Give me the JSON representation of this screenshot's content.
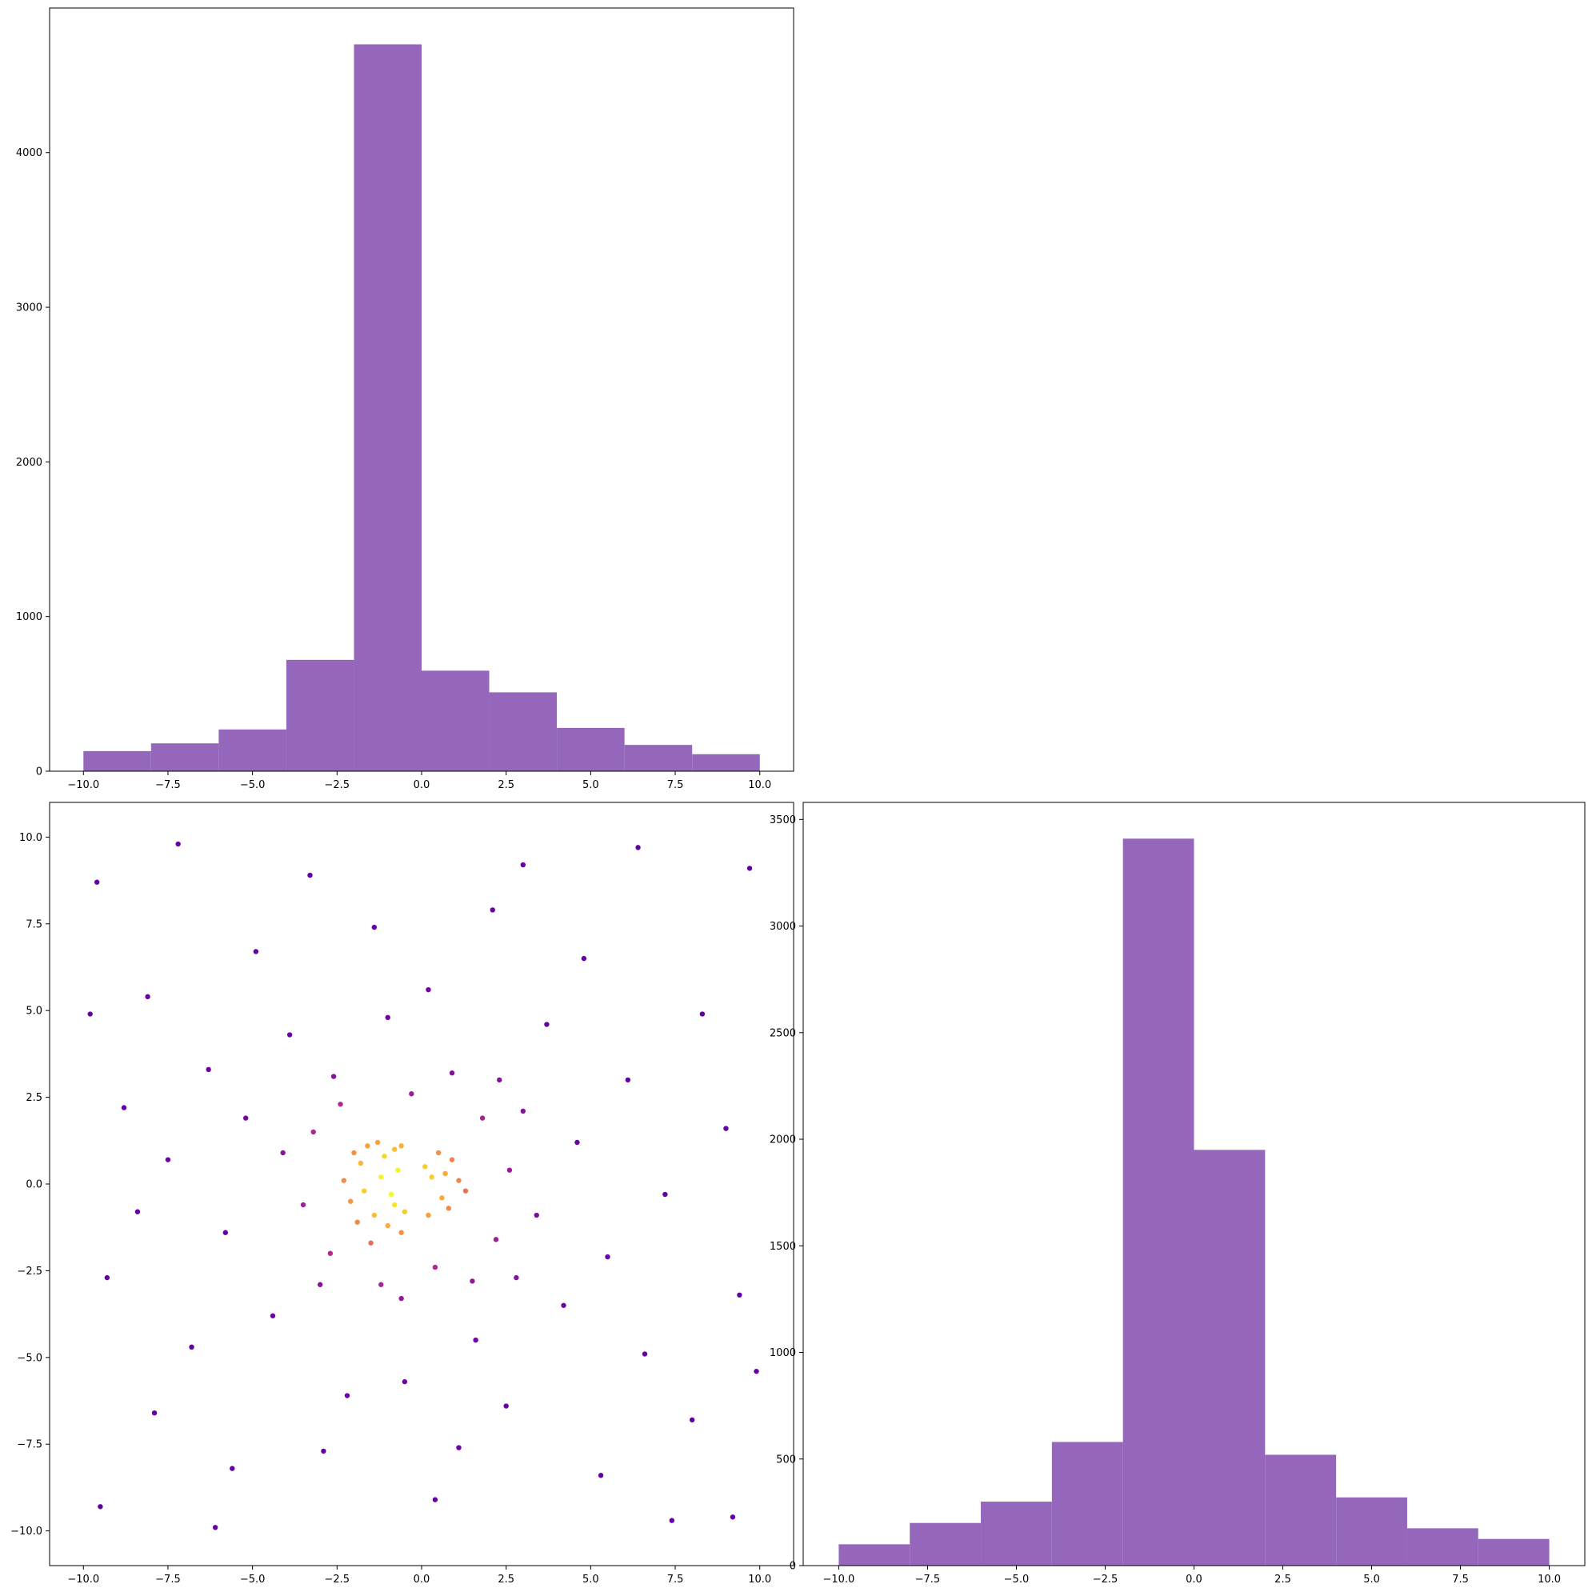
{
  "colors": {
    "bar_fill": "#9467bd",
    "colormap": "plasma",
    "colormap_stops": [
      "#0d0887",
      "#6a00a8",
      "#b12a90",
      "#e16462",
      "#fca636",
      "#f0f921"
    ]
  },
  "chart_data": [
    {
      "id": "hist_x",
      "type": "bar",
      "position": "top-left",
      "title": "",
      "xlabel": "",
      "ylabel": "",
      "bin_edges": [
        -10,
        -8,
        -6,
        -4,
        -2,
        0,
        2,
        4,
        6,
        8,
        10
      ],
      "values": [
        130,
        180,
        270,
        720,
        4700,
        650,
        510,
        280,
        170,
        110
      ],
      "xlim": [
        -11,
        11
      ],
      "ylim": [
        0,
        4935
      ],
      "xticks": [
        -10,
        -7.5,
        -5,
        -2.5,
        0,
        2.5,
        5,
        7.5,
        10
      ],
      "xtick_labels": [
        "−10.0",
        "−7.5",
        "−5.0",
        "−2.5",
        "0.0",
        "2.5",
        "5.0",
        "7.5",
        "10.0"
      ],
      "yticks": [
        0,
        1000,
        2000,
        3000,
        4000
      ],
      "ytick_labels": [
        "0",
        "1000",
        "2000",
        "3000",
        "4000"
      ],
      "grid": false
    },
    {
      "id": "scatter_xy",
      "type": "scatter",
      "position": "bottom-left",
      "title": "",
      "xlabel": "",
      "ylabel": "",
      "color_by": "point density (plasma colormap)",
      "xlim": [
        -11,
        11
      ],
      "ylim": [
        -11,
        11
      ],
      "xticks": [
        -10,
        -7.5,
        -5,
        -2.5,
        0,
        2.5,
        5,
        7.5,
        10
      ],
      "xtick_labels": [
        "−10.0",
        "−7.5",
        "−5.0",
        "−2.5",
        "0.0",
        "2.5",
        "5.0",
        "7.5",
        "10.0"
      ],
      "yticks": [
        -10,
        -7.5,
        -5,
        -2.5,
        0,
        2.5,
        5,
        7.5,
        10
      ],
      "ytick_labels": [
        "−10.0",
        "−7.5",
        "−5.0",
        "−2.5",
        "0.0",
        "2.5",
        "5.0",
        "7.5",
        "10.0"
      ],
      "grid": false,
      "points": [
        [
          -1.8,
          0.6
        ],
        [
          -1.4,
          -0.9
        ],
        [
          -0.8,
          1.0
        ],
        [
          -1.2,
          0.2
        ],
        [
          -2.1,
          -0.5
        ],
        [
          -0.6,
          -1.4
        ],
        [
          -1.6,
          1.1
        ],
        [
          -0.9,
          -0.3
        ],
        [
          -1.1,
          0.8
        ],
        [
          -2.3,
          0.1
        ],
        [
          -0.7,
          0.4
        ],
        [
          -1.5,
          -1.7
        ],
        [
          -0.5,
          -0.8
        ],
        [
          -1.9,
          -1.1
        ],
        [
          -1.3,
          1.2
        ],
        [
          -0.6,
          1.1
        ],
        [
          -2.0,
          0.9
        ],
        [
          -1.0,
          -1.2
        ],
        [
          -1.7,
          -0.2
        ],
        [
          -0.8,
          -0.6
        ],
        [
          0.3,
          0.2
        ],
        [
          0.6,
          -0.4
        ],
        [
          0.9,
          0.7
        ],
        [
          0.2,
          -0.9
        ],
        [
          1.1,
          0.1
        ],
        [
          0.5,
          0.9
        ],
        [
          0.8,
          -0.7
        ],
        [
          1.3,
          -0.2
        ],
        [
          0.1,
          0.5
        ],
        [
          0.7,
          0.3
        ],
        [
          -3.2,
          1.5
        ],
        [
          -2.7,
          -2.0
        ],
        [
          1.8,
          1.9
        ],
        [
          2.2,
          -1.6
        ],
        [
          -0.3,
          2.6
        ],
        [
          0.4,
          -2.4
        ],
        [
          -3.5,
          -0.6
        ],
        [
          2.6,
          0.4
        ],
        [
          -2.4,
          2.3
        ],
        [
          1.5,
          -2.8
        ],
        [
          -1.2,
          -2.9
        ],
        [
          3.0,
          2.1
        ],
        [
          -4.1,
          0.9
        ],
        [
          3.4,
          -0.9
        ],
        [
          0.9,
          3.2
        ],
        [
          -0.6,
          -3.3
        ],
        [
          -3.0,
          -2.9
        ],
        [
          2.8,
          -2.7
        ],
        [
          -2.6,
          3.1
        ],
        [
          2.3,
          3.0
        ],
        [
          -5.2,
          1.9
        ],
        [
          4.6,
          1.2
        ],
        [
          -1.0,
          4.8
        ],
        [
          1.6,
          -4.5
        ],
        [
          -4.4,
          -3.8
        ],
        [
          4.2,
          -3.5
        ],
        [
          -3.9,
          4.3
        ],
        [
          3.7,
          4.6
        ],
        [
          -5.8,
          -1.4
        ],
        [
          5.5,
          -2.1
        ],
        [
          0.2,
          5.6
        ],
        [
          -0.5,
          -5.7
        ],
        [
          -6.3,
          3.3
        ],
        [
          6.1,
          3.0
        ],
        [
          -2.2,
          -6.1
        ],
        [
          2.5,
          -6.4
        ],
        [
          -6.8,
          -4.7
        ],
        [
          6.6,
          -4.9
        ],
        [
          -4.9,
          6.7
        ],
        [
          4.8,
          6.5
        ],
        [
          -7.5,
          0.7
        ],
        [
          7.2,
          -0.3
        ],
        [
          -1.4,
          7.4
        ],
        [
          1.1,
          -7.6
        ],
        [
          -8.1,
          5.4
        ],
        [
          8.3,
          4.9
        ],
        [
          -7.9,
          -6.6
        ],
        [
          8.0,
          -6.8
        ],
        [
          -5.6,
          -8.2
        ],
        [
          5.3,
          -8.4
        ],
        [
          -8.8,
          2.2
        ],
        [
          9.0,
          1.6
        ],
        [
          -3.3,
          8.9
        ],
        [
          3.0,
          9.2
        ],
        [
          -9.3,
          -2.7
        ],
        [
          9.4,
          -3.2
        ],
        [
          0.4,
          -9.1
        ],
        [
          -9.6,
          8.7
        ],
        [
          9.7,
          9.1
        ],
        [
          -9.5,
          -9.3
        ],
        [
          9.2,
          -9.6
        ],
        [
          -7.2,
          9.8
        ],
        [
          7.4,
          -9.7
        ],
        [
          -9.8,
          4.9
        ],
        [
          9.9,
          -5.4
        ],
        [
          -6.1,
          -9.9
        ],
        [
          6.4,
          9.7
        ],
        [
          -2.9,
          -7.7
        ],
        [
          2.1,
          7.9
        ],
        [
          -8.4,
          -0.8
        ]
      ]
    },
    {
      "id": "hist_y",
      "type": "bar",
      "position": "bottom-right",
      "title": "",
      "xlabel": "",
      "ylabel": "",
      "bin_edges": [
        -10,
        -8,
        -6,
        -4,
        -2,
        0,
        2,
        4,
        6,
        8,
        10
      ],
      "values": [
        100,
        200,
        300,
        580,
        3410,
        1950,
        520,
        320,
        175,
        125
      ],
      "xlim": [
        -11,
        11
      ],
      "ylim": [
        0,
        3580
      ],
      "xticks": [
        -10,
        -7.5,
        -5,
        -2.5,
        0,
        2.5,
        5,
        7.5,
        10
      ],
      "xtick_labels": [
        "−10.0",
        "−7.5",
        "−5.0",
        "−2.5",
        "0.0",
        "2.5",
        "5.0",
        "7.5",
        "10.0"
      ],
      "yticks": [
        0,
        500,
        1000,
        1500,
        2000,
        2500,
        3000,
        3500
      ],
      "ytick_labels": [
        "0",
        "500",
        "1000",
        "1500",
        "2000",
        "2500",
        "3000",
        "3500"
      ],
      "grid": false
    }
  ]
}
